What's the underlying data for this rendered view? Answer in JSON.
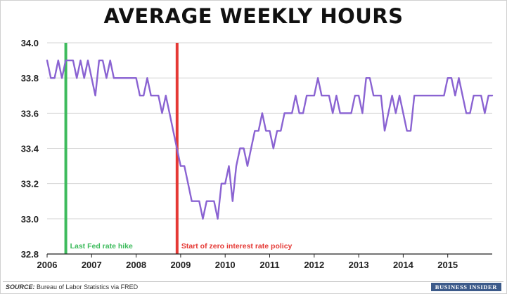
{
  "title": "AVERAGE WEEKLY HOURS",
  "source_label": "SOURCE:",
  "source_text": " Bureau of Labor Statistics via FRED",
  "brand": "BUSINESS INSIDER",
  "colors": {
    "series": "#8a63d2",
    "fed_hike": "#3dbb5c",
    "zirp": "#e53935",
    "grid": "#d6d6d6"
  },
  "chart_data": {
    "type": "line",
    "title": "AVERAGE WEEKLY HOURS",
    "xlabel": "",
    "ylabel": "",
    "ylim": [
      32.8,
      34.0
    ],
    "xlim": [
      2006.0,
      2015.85
    ],
    "grid": true,
    "y_ticks": [
      "32.8",
      "33.0",
      "33.2",
      "33.4",
      "33.6",
      "33.8",
      "34.0"
    ],
    "x_ticks": [
      "2006",
      "2007",
      "2008",
      "2009",
      "2010",
      "2011",
      "2012",
      "2013",
      "2014",
      "2015"
    ],
    "series": [
      {
        "values": [
          33.9,
          33.8,
          33.8,
          33.9,
          33.8,
          33.9,
          33.9,
          33.9,
          33.8,
          33.9,
          33.8,
          33.9,
          33.8,
          33.7,
          33.9,
          33.9,
          33.8,
          33.9,
          33.8,
          33.8,
          33.8,
          33.8,
          33.8,
          33.8,
          33.8,
          33.7,
          33.7,
          33.8,
          33.7,
          33.7,
          33.7,
          33.6,
          33.7,
          33.6,
          33.5,
          33.4,
          33.3,
          33.3,
          33.2,
          33.1,
          33.1,
          33.1,
          33.0,
          33.1,
          33.1,
          33.1,
          33.0,
          33.2,
          33.2,
          33.3,
          33.1,
          33.3,
          33.4,
          33.4,
          33.3,
          33.4,
          33.5,
          33.5,
          33.6,
          33.5,
          33.5,
          33.4,
          33.5,
          33.5,
          33.6,
          33.6,
          33.6,
          33.7,
          33.6,
          33.6,
          33.7,
          33.7,
          33.7,
          33.8,
          33.7,
          33.7,
          33.7,
          33.6,
          33.7,
          33.6,
          33.6,
          33.6,
          33.6,
          33.7,
          33.7,
          33.6,
          33.8,
          33.8,
          33.7,
          33.7,
          33.7,
          33.5,
          33.6,
          33.7,
          33.6,
          33.7,
          33.6,
          33.5,
          33.5,
          33.7,
          33.7,
          33.7,
          33.7,
          33.7,
          33.7,
          33.7,
          33.7,
          33.7,
          33.8,
          33.8,
          33.7,
          33.8,
          33.7,
          33.6,
          33.6,
          33.7,
          33.7,
          33.7,
          33.6,
          33.7,
          33.7
        ]
      }
    ],
    "annotations": [
      {
        "x": 2006.42,
        "label": "Last Fed rate hike",
        "color": "#3dbb5c"
      },
      {
        "x": 2008.92,
        "label": "Start of zero interest rate policy",
        "color": "#e53935"
      }
    ]
  }
}
